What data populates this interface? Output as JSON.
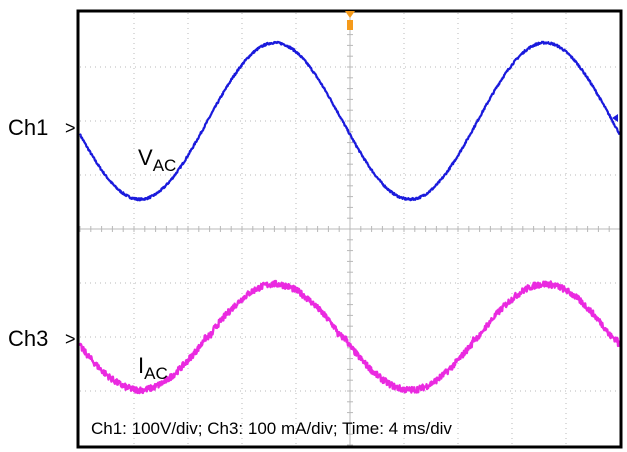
{
  "chart_data": {
    "type": "line",
    "title": "",
    "xlabel": "",
    "ylabel": "",
    "grid": true,
    "x_divisions": 10,
    "y_divisions": 8,
    "x_unit": "ms",
    "x_per_div": 4,
    "x_range": [
      0,
      40
    ],
    "series": [
      {
        "label": "V",
        "label_sub": "AC",
        "channel_label": "Ch1",
        "marker": ">",
        "color": "#1a1adc",
        "waveform": "sine",
        "frequency_hz": 50,
        "amplitude_div": 1.45,
        "offset_div": 2.0,
        "phase_deg": 190,
        "noise_div": 0.02
      },
      {
        "label": "I",
        "label_sub": "AC",
        "channel_label": "Ch3",
        "marker": ">",
        "color": "#ea2ae0",
        "waveform": "sine",
        "frequency_hz": 50,
        "amplitude_div": 0.98,
        "offset_div": -2.0,
        "phase_deg": 190,
        "noise_div": 0.06
      }
    ],
    "annotation": "Ch1: 100V/div; Ch3: 100 mA/div; Time: 4 ms/div",
    "colors": {
      "grid": "#b8b8b8",
      "frame": "#000000",
      "trigger_marker": "#f59a1a"
    }
  }
}
